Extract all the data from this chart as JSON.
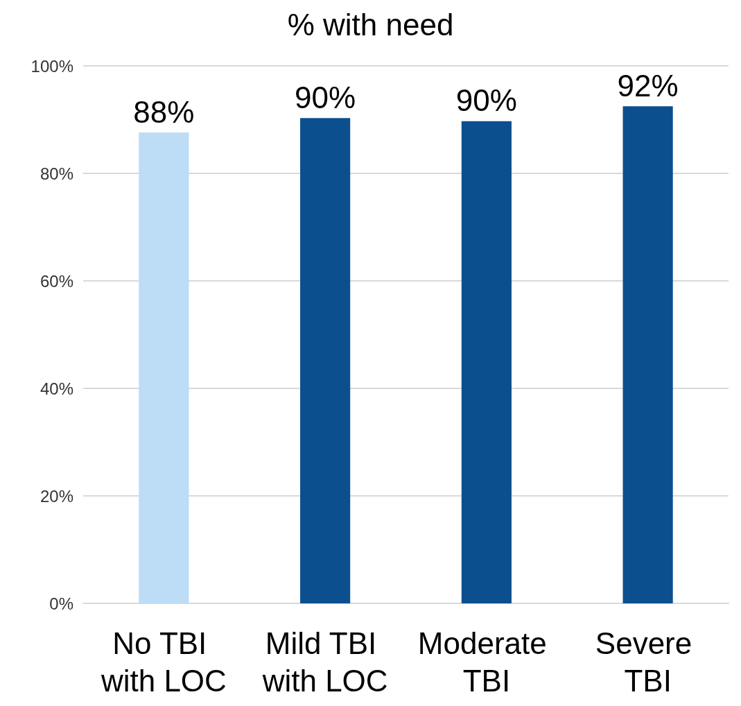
{
  "chart_data": {
    "type": "bar",
    "title": "% with need",
    "categories": [
      "No TBI with LOC",
      "Mild TBI with LOC",
      "Moderate TBI",
      "Severe TBI"
    ],
    "values": [
      87.6,
      90.3,
      89.7,
      92.5
    ],
    "colors": [
      "#bddcf5",
      "#0b4f8e",
      "#0b4f8e",
      "#0b4f8e"
    ],
    "value_labels": [
      "88%",
      "90%",
      "90%",
      "92%"
    ],
    "ylim": [
      0,
      100
    ],
    "yticks": [
      {
        "value": 0,
        "label": "0%"
      },
      {
        "value": 20,
        "label": "20%"
      },
      {
        "value": 40,
        "label": "40%"
      },
      {
        "value": 60,
        "label": "60%"
      },
      {
        "value": 80,
        "label": "80%"
      },
      {
        "value": 100,
        "label": "100%"
      }
    ],
    "grid": "y"
  }
}
